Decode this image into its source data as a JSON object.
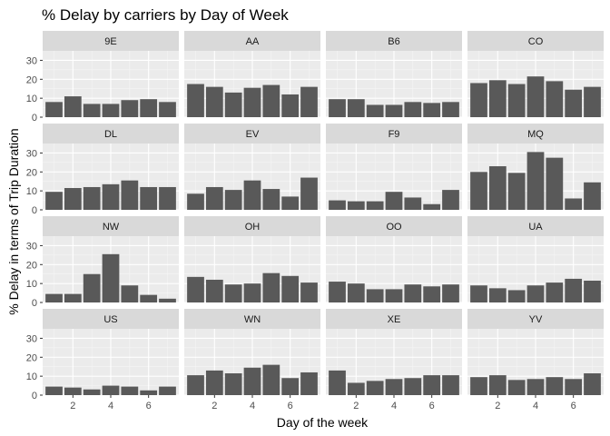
{
  "chart_data": {
    "type": "bar",
    "title": "% Delay by carriers by Day of Week",
    "xlabel": "Day of the week",
    "ylabel": "% Delay in terms of Trip Duration",
    "x": [
      1,
      2,
      3,
      4,
      5,
      6,
      7
    ],
    "x_ticks": [
      "2",
      "4",
      "6"
    ],
    "y_ticks": [
      "0",
      "10",
      "20",
      "30"
    ],
    "ylim": [
      0,
      35
    ],
    "xlim": [
      0.4,
      7.6
    ],
    "grid": true,
    "facet_layout": "4 columns x 4 rows",
    "colors": {
      "bar": "#595959",
      "panel_background": "#ebebeb",
      "strip_background": "#d9d9d9",
      "grid_major": "#ffffff"
    },
    "facets": [
      {
        "carrier": "9E",
        "values": [
          8.0,
          11.0,
          7.0,
          7.0,
          9.0,
          9.5,
          8.0
        ]
      },
      {
        "carrier": "AA",
        "values": [
          17.5,
          16.0,
          13.0,
          15.5,
          17.0,
          12.0,
          16.0
        ]
      },
      {
        "carrier": "B6",
        "values": [
          9.5,
          9.5,
          6.5,
          6.5,
          8.0,
          7.5,
          8.0
        ]
      },
      {
        "carrier": "CO",
        "values": [
          18.0,
          19.5,
          17.5,
          21.5,
          19.0,
          14.5,
          16.0
        ]
      },
      {
        "carrier": "DL",
        "values": [
          9.5,
          11.5,
          12.0,
          13.5,
          15.5,
          12.0,
          12.0
        ]
      },
      {
        "carrier": "EV",
        "values": [
          8.5,
          12.0,
          10.5,
          15.5,
          11.0,
          7.0,
          17.0
        ]
      },
      {
        "carrier": "F9",
        "values": [
          5.0,
          4.5,
          4.5,
          9.5,
          6.5,
          3.0,
          10.5
        ]
      },
      {
        "carrier": "MQ",
        "values": [
          20.0,
          23.0,
          19.5,
          30.5,
          27.5,
          6.0,
          14.5
        ]
      },
      {
        "carrier": "NW",
        "values": [
          4.5,
          4.5,
          15.0,
          25.5,
          9.0,
          4.0,
          2.0
        ]
      },
      {
        "carrier": "OH",
        "values": [
          13.5,
          12.0,
          9.5,
          10.0,
          15.5,
          14.0,
          10.5
        ]
      },
      {
        "carrier": "OO",
        "values": [
          11.0,
          10.0,
          7.0,
          7.0,
          9.5,
          8.5,
          9.5
        ]
      },
      {
        "carrier": "UA",
        "values": [
          9.0,
          7.5,
          6.5,
          9.0,
          10.5,
          12.5,
          11.5
        ]
      },
      {
        "carrier": "US",
        "values": [
          4.5,
          4.0,
          3.0,
          5.0,
          4.5,
          2.5,
          4.5
        ]
      },
      {
        "carrier": "WN",
        "values": [
          10.5,
          13.0,
          11.5,
          14.5,
          16.0,
          9.0,
          12.0
        ]
      },
      {
        "carrier": "XE",
        "values": [
          13.0,
          6.5,
          7.5,
          8.5,
          9.0,
          10.5,
          10.5
        ]
      },
      {
        "carrier": "YV",
        "values": [
          9.5,
          10.5,
          8.0,
          8.5,
          9.5,
          8.5,
          11.5
        ]
      }
    ]
  }
}
